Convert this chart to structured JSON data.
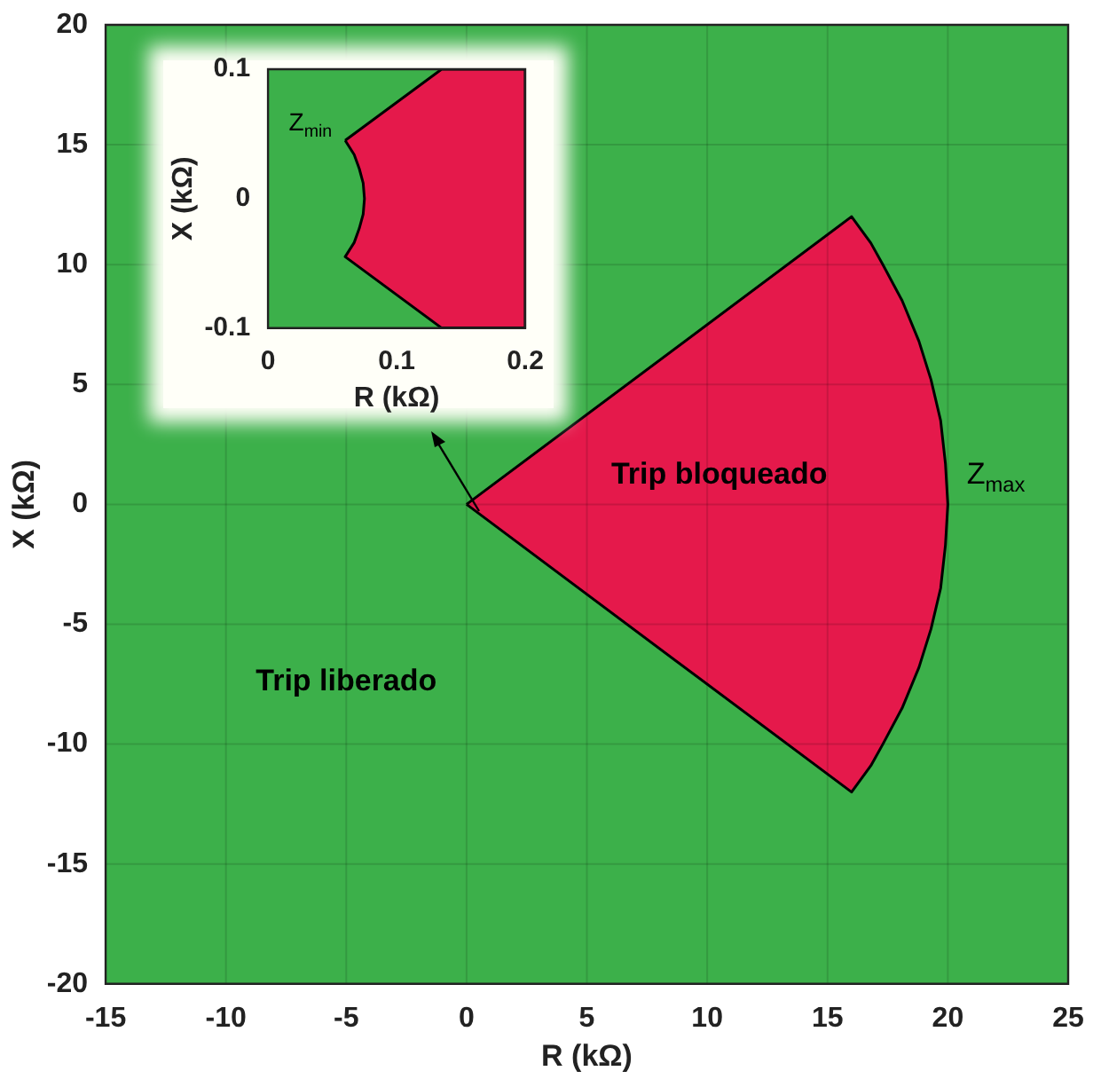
{
  "chart_data": [
    {
      "type": "area",
      "xlabel": "R (kΩ)",
      "ylabel": "X (kΩ)",
      "xlim": [
        -15,
        25
      ],
      "xticks": [
        -15,
        -10,
        -5,
        0,
        5,
        10,
        15,
        20,
        25
      ],
      "ylim": [
        -20,
        20
      ],
      "yticks": [
        -20,
        -15,
        -10,
        -5,
        0,
        5,
        10,
        15,
        20
      ],
      "grid": true,
      "legend": false,
      "bands": [
        {
          "axis": "x",
          "from": -15,
          "to": 25,
          "color": "#3cb04a"
        }
      ],
      "series": [
        {
          "color": "#e5194b",
          "x": [
            0,
            16,
            16.8,
            17.3,
            18.1,
            18.8,
            19.3,
            19.7,
            19.9,
            20,
            19.9,
            19.7,
            19.3,
            18.8,
            18.1,
            17.3,
            16.8,
            16,
            0
          ],
          "values": [
            0,
            12,
            10.9,
            10,
            8.5,
            6.8,
            5.2,
            3.5,
            1.7,
            0,
            -1.7,
            -3.5,
            -5.2,
            -6.8,
            -8.5,
            -10,
            -10.9,
            -12,
            0
          ]
        }
      ],
      "annotations": [
        "Trip bloqueado",
        "Trip liberado",
        "Z$_{max}$"
      ]
    },
    {
      "type": "area",
      "xlabel": "R (kΩ)",
      "ylabel": "X (kΩ)",
      "xlim": [
        0,
        0.2
      ],
      "xticks": [
        0,
        0.1,
        0.2
      ],
      "ylim": [
        -0.1,
        0.1
      ],
      "yticks": [
        -0.1,
        0,
        0.1
      ],
      "legend": false,
      "bands": [
        {
          "axis": "x",
          "from": 0,
          "to": 0.2,
          "color": "#3cb04a"
        }
      ],
      "series": [
        {
          "color": "#e5194b",
          "x": [
            0.06,
            0.135,
            0.2,
            0.2,
            0.135,
            0.06,
            0.067,
            0.071,
            0.074,
            0.075,
            0.074,
            0.071,
            0.067,
            0.06
          ],
          "values": [
            0.045,
            0.1,
            0.1,
            -0.1,
            -0.1,
            -0.045,
            -0.034,
            -0.023,
            -0.012,
            0,
            0.012,
            0.023,
            0.034,
            0.045
          ]
        }
      ],
      "annotations": [
        "Z$_{min}$"
      ]
    }
  ]
}
